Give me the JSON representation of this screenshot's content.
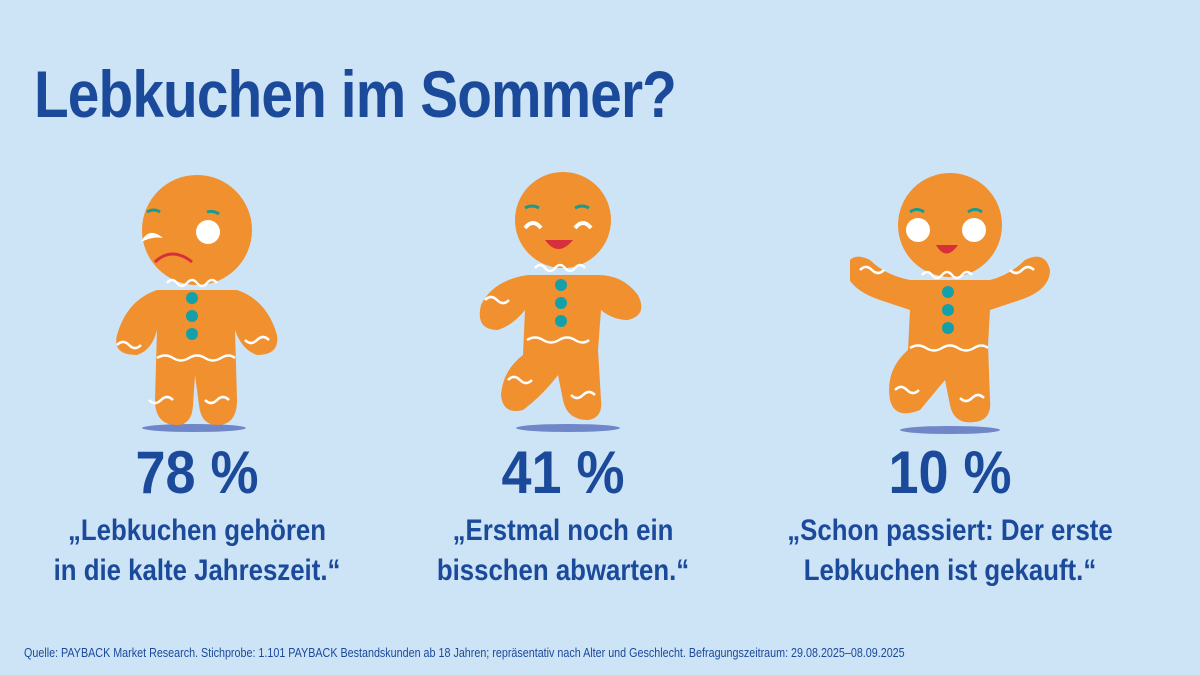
{
  "title": "Lebkuchen im Sommer?",
  "colors": {
    "background": "#cde3f6",
    "text": "#1b4a9b",
    "cookie": "#f0902e",
    "button": "#13a0a8",
    "icing": "#ffffff"
  },
  "items": [
    {
      "icon": "worried-gingerbread-man-icon",
      "percent": "78 %",
      "quote_line1": "„Lebkuchen gehören",
      "quote_line2": "in die kalte Jahreszeit.“"
    },
    {
      "icon": "smiling-gingerbread-man-icon",
      "percent": "41 %",
      "quote_line1": "„Erstmal noch ein",
      "quote_line2": "bisschen abwarten.“"
    },
    {
      "icon": "happy-gingerbread-man-icon",
      "percent": "10 %",
      "quote_line1": "„Schon passiert: Der erste",
      "quote_line2": "Lebkuchen ist gekauft.“"
    }
  ],
  "source": "Quelle: PAYBACK Market Research. Stichprobe: 1.101 PAYBACK Bestandskunden ab 18 Jahren; repräsentativ nach Alter und Geschlecht. Befragungszeitraum: 29.08.2025–08.09.2025"
}
